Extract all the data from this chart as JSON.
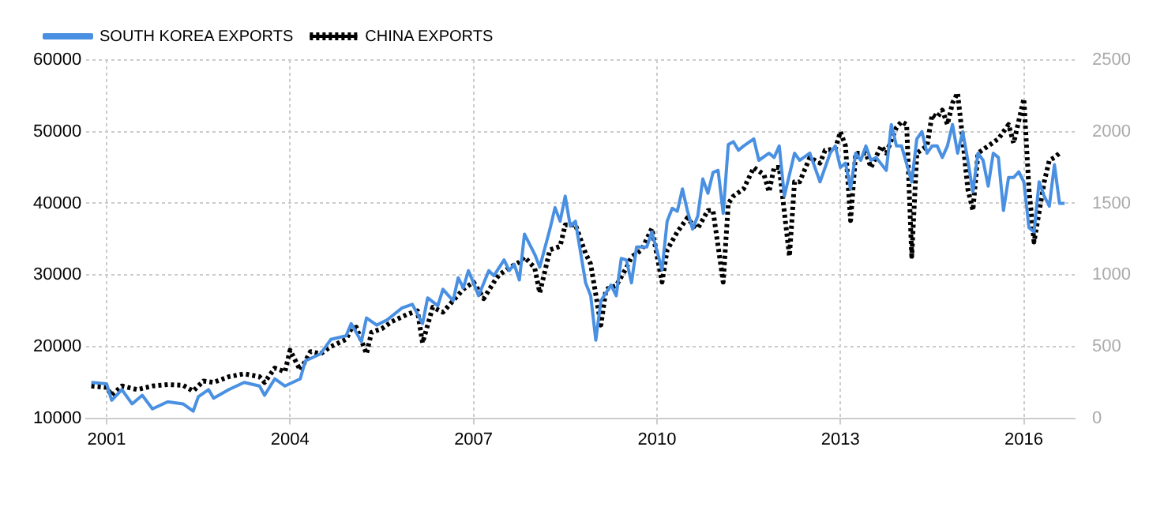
{
  "chart_data": {
    "type": "line",
    "series": [
      {
        "name": "SOUTH KOREA EXPORTS",
        "color": "#4a90e2",
        "line_style": "solid",
        "axis": "y",
        "x": [
          "2000-10",
          "2001-01",
          "2001-02",
          "2001-04",
          "2001-06",
          "2001-08",
          "2001-10",
          "2002-01",
          "2002-04",
          "2002-06",
          "2002-07",
          "2002-09",
          "2002-10",
          "2003-01",
          "2003-04",
          "2003-07",
          "2003-08",
          "2003-10",
          "2003-12",
          "2004-03",
          "2004-04",
          "2004-07",
          "2004-09",
          "2004-12",
          "2005-01",
          "2005-03",
          "2005-04",
          "2005-06",
          "2005-08",
          "2005-11",
          "2006-01",
          "2006-03",
          "2006-04",
          "2006-06",
          "2006-07",
          "2006-09",
          "2006-10",
          "2006-11",
          "2006-12",
          "2007-01",
          "2007-02",
          "2007-04",
          "2007-05",
          "2007-07",
          "2007-08",
          "2007-09",
          "2007-10",
          "2007-11",
          "2008-01",
          "2008-02",
          "2008-04",
          "2008-05",
          "2008-06",
          "2008-07",
          "2008-08",
          "2008-09",
          "2008-11",
          "2008-12",
          "2009-01",
          "2009-02",
          "2009-04",
          "2009-05",
          "2009-06",
          "2009-07",
          "2009-08",
          "2009-09",
          "2009-11",
          "2009-12",
          "2010-02",
          "2010-03",
          "2010-04",
          "2010-05",
          "2010-06",
          "2010-07",
          "2010-08",
          "2010-09",
          "2010-10",
          "2010-11",
          "2010-12",
          "2011-01",
          "2011-02",
          "2011-03",
          "2011-04",
          "2011-05",
          "2011-06",
          "2011-08",
          "2011-09",
          "2011-11",
          "2011-12",
          "2012-01",
          "2012-02",
          "2012-04",
          "2012-05",
          "2012-07",
          "2012-09",
          "2012-11",
          "2012-12",
          "2013-01",
          "2013-02",
          "2013-03",
          "2013-04",
          "2013-05",
          "2013-06",
          "2013-07",
          "2013-08",
          "2013-10",
          "2013-11",
          "2013-12",
          "2014-01",
          "2014-03",
          "2014-04",
          "2014-05",
          "2014-06",
          "2014-07",
          "2014-08",
          "2014-09",
          "2014-10",
          "2014-11",
          "2014-12",
          "2015-01",
          "2015-02",
          "2015-03",
          "2015-04",
          "2015-05",
          "2015-06",
          "2015-07",
          "2015-08",
          "2015-09",
          "2015-10",
          "2015-11",
          "2015-12",
          "2016-01",
          "2016-02",
          "2016-03",
          "2016-04",
          "2016-05",
          "2016-06",
          "2016-07",
          "2016-08",
          "2016-09"
        ],
        "values": [
          15000,
          14800,
          12500,
          14000,
          12000,
          13200,
          11300,
          12300,
          12000,
          11000,
          13000,
          14000,
          12800,
          14000,
          15000,
          14500,
          13200,
          15500,
          14500,
          15500,
          18000,
          19000,
          21000,
          21500,
          23200,
          20700,
          24000,
          23000,
          23700,
          25400,
          25900,
          23200,
          26800,
          25700,
          28000,
          26400,
          29600,
          28200,
          30600,
          28900,
          27100,
          30600,
          29900,
          32100,
          30600,
          31500,
          29300,
          35700,
          32900,
          31100,
          36400,
          39400,
          37500,
          41000,
          36800,
          37500,
          28900,
          27100,
          20900,
          26400,
          28600,
          27100,
          32300,
          32100,
          28900,
          33900,
          33900,
          36000,
          30700,
          37500,
          39300,
          38900,
          42000,
          38900,
          36400,
          38200,
          43400,
          41400,
          44300,
          44600,
          38600,
          48200,
          48600,
          47400,
          48000,
          49000,
          46000,
          47000,
          46400,
          48000,
          41000,
          47000,
          46000,
          47000,
          43000,
          47000,
          48000,
          45000,
          45600,
          42000,
          47000,
          46000,
          48000,
          46000,
          46400,
          44600,
          51000,
          48000,
          48000,
          43000,
          49000,
          50000,
          47000,
          48000,
          48000,
          46400,
          48000,
          51000,
          47000,
          50000,
          46000,
          41600,
          47000,
          46000,
          42400,
          47000,
          46400,
          39000,
          43600,
          43600,
          44400,
          43000,
          36600,
          36000,
          43000,
          41000,
          39600,
          45400,
          40000,
          40000
        ]
      },
      {
        "name": "CHINA EXPORTS",
        "color": "#000000",
        "line_style": "dotted",
        "axis": "y2",
        "x": [
          "2000-10",
          "2001-01",
          "2001-02",
          "2001-04",
          "2001-07",
          "2001-10",
          "2002-01",
          "2002-04",
          "2002-06",
          "2002-08",
          "2002-10",
          "2003-01",
          "2003-04",
          "2003-07",
          "2003-08",
          "2003-10",
          "2003-12",
          "2004-01",
          "2004-03",
          "2004-05",
          "2004-07",
          "2004-09",
          "2004-12",
          "2005-01",
          "2005-02",
          "2005-04",
          "2005-05",
          "2005-07",
          "2005-09",
          "2005-12",
          "2006-02",
          "2006-03",
          "2006-05",
          "2006-07",
          "2006-09",
          "2006-11",
          "2007-01",
          "2007-03",
          "2007-05",
          "2007-06",
          "2007-08",
          "2007-10",
          "2007-11",
          "2008-01",
          "2008-02",
          "2008-04",
          "2008-06",
          "2008-07",
          "2008-09",
          "2008-11",
          "2008-12",
          "2009-02",
          "2009-03",
          "2009-05",
          "2009-07",
          "2009-08",
          "2009-10",
          "2009-12",
          "2010-02",
          "2010-03",
          "2010-05",
          "2010-07",
          "2010-08",
          "2010-09",
          "2010-11",
          "2010-12",
          "2011-02",
          "2011-03",
          "2011-04",
          "2011-06",
          "2011-08",
          "2011-10",
          "2011-11",
          "2011-12",
          "2012-01",
          "2012-03",
          "2012-04",
          "2012-05",
          "2012-07",
          "2012-09",
          "2012-10",
          "2012-12",
          "2013-01",
          "2013-02",
          "2013-03",
          "2013-04",
          "2013-06",
          "2013-07",
          "2013-09",
          "2013-10",
          "2013-12",
          "2014-01",
          "2014-02",
          "2014-03",
          "2014-04",
          "2014-06",
          "2014-07",
          "2014-08",
          "2014-09",
          "2014-10",
          "2014-11",
          "2014-12",
          "2015-01",
          "2015-02",
          "2015-03",
          "2015-04",
          "2015-06",
          "2015-08",
          "2015-10",
          "2015-11",
          "2016-01",
          "2016-02",
          "2016-03",
          "2016-05",
          "2016-06",
          "2016-07",
          "2016-08"
        ],
        "values": [
          225,
          215,
          160,
          225,
          200,
          225,
          235,
          230,
          190,
          260,
          250,
          290,
          310,
          290,
          250,
          350,
          325,
          475,
          335,
          465,
          450,
          500,
          550,
          625,
          635,
          450,
          600,
          625,
          675,
          725,
          750,
          525,
          775,
          740,
          820,
          900,
          950,
          835,
          950,
          1000,
          1050,
          1090,
          1125,
          1050,
          875,
          1175,
          1200,
          1350,
          1350,
          1150,
          1075,
          650,
          900,
          925,
          1050,
          1125,
          1175,
          1325,
          950,
          1175,
          1300,
          1400,
          1350,
          1325,
          1450,
          1450,
          950,
          1500,
          1550,
          1600,
          1750,
          1700,
          1580,
          1750,
          1750,
          1130,
          1650,
          1650,
          1820,
          1780,
          1870,
          1880,
          2000,
          1900,
          1380,
          1850,
          1850,
          1750,
          1900,
          1850,
          2030,
          2070,
          2050,
          1130,
          1850,
          1900,
          2120,
          2100,
          2150,
          2050,
          2200,
          2270,
          1950,
          1600,
          1450,
          1850,
          1900,
          1950,
          2050,
          1920,
          2230,
          1600,
          1230,
          1650,
          1800,
          1820,
          1850
        ]
      }
    ],
    "xlim": [
      "2000-09",
      "2016-11"
    ],
    "xticks": [
      "2001",
      "2004",
      "2007",
      "2010",
      "2013",
      "2016"
    ],
    "ylim": [
      10000,
      60000
    ],
    "yticks": [
      10000,
      20000,
      30000,
      40000,
      50000,
      60000
    ],
    "y2lim": [
      0,
      2500
    ],
    "y2ticks": [
      0,
      500,
      1000,
      1500,
      2000,
      2500
    ],
    "grid": true,
    "legend": "top left",
    "marker": "none"
  }
}
